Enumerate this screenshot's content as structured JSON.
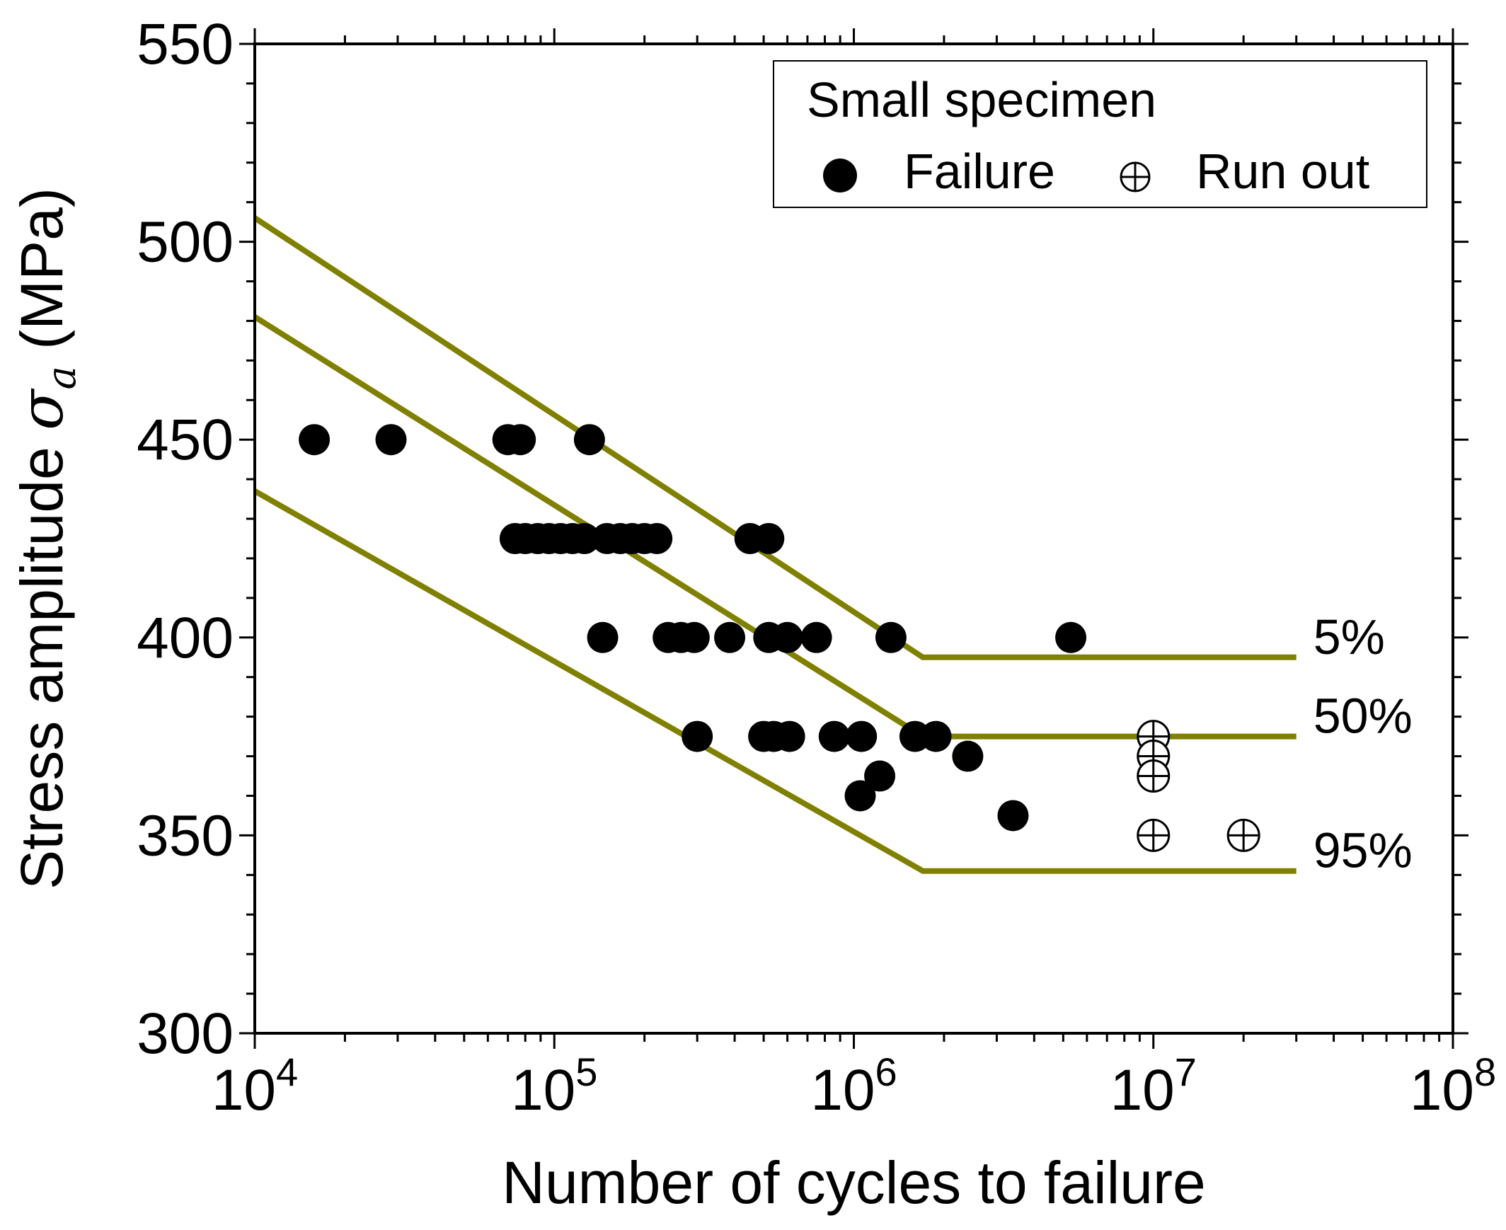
{
  "chart_data": {
    "type": "scatter",
    "title": "",
    "xlabel": "Number of cycles to failure",
    "ylabel_main": "Stress amplitude ",
    "ylabel_symbol": "σ",
    "ylabel_subscript": "a",
    "ylabel_unit": " (MPa)",
    "x_scale": "log",
    "xlim": [
      10000,
      100000000
    ],
    "ylim": [
      300,
      550
    ],
    "x_ticks": [
      {
        "value": 10000,
        "base": "10",
        "exp": "4"
      },
      {
        "value": 100000,
        "base": "10",
        "exp": "5"
      },
      {
        "value": 1000000,
        "base": "10",
        "exp": "6"
      },
      {
        "value": 10000000,
        "base": "10",
        "exp": "7"
      },
      {
        "value": 100000000,
        "base": "10",
        "exp": "8"
      }
    ],
    "y_ticks": [
      {
        "value": 300,
        "label": "300"
      },
      {
        "value": 350,
        "label": "350"
      },
      {
        "value": 400,
        "label": "400"
      },
      {
        "value": 450,
        "label": "450"
      },
      {
        "value": 500,
        "label": "500"
      },
      {
        "value": 550,
        "label": "550"
      }
    ],
    "y_minor_step": 10,
    "legend": {
      "title": "Small specimen",
      "position": "top-right",
      "entries": [
        {
          "label": "Failure",
          "marker": "filled-circle"
        },
        {
          "label": "Run out",
          "marker": "circle-plus"
        }
      ]
    },
    "series": [
      {
        "name": "Failure",
        "marker": "filled-circle",
        "points": [
          [
            15800,
            450
          ],
          [
            28500,
            450
          ],
          [
            70000,
            450
          ],
          [
            77000,
            450
          ],
          [
            131000,
            450
          ],
          [
            74000,
            425
          ],
          [
            80000,
            425
          ],
          [
            88000,
            425
          ],
          [
            96000,
            425
          ],
          [
            105000,
            425
          ],
          [
            115000,
            425
          ],
          [
            126000,
            425
          ],
          [
            150000,
            425
          ],
          [
            166000,
            425
          ],
          [
            182000,
            425
          ],
          [
            200000,
            425
          ],
          [
            220000,
            425
          ],
          [
            450000,
            425
          ],
          [
            520000,
            425
          ],
          [
            145000,
            400
          ],
          [
            240000,
            400
          ],
          [
            265000,
            400
          ],
          [
            293000,
            400
          ],
          [
            385000,
            400
          ],
          [
            520000,
            400
          ],
          [
            600000,
            400
          ],
          [
            750000,
            400
          ],
          [
            1330000,
            400
          ],
          [
            5300000,
            400
          ],
          [
            300000,
            375
          ],
          [
            500000,
            375
          ],
          [
            540000,
            375
          ],
          [
            610000,
            375
          ],
          [
            860000,
            375
          ],
          [
            1060000,
            375
          ],
          [
            1600000,
            375
          ],
          [
            1880000,
            375
          ],
          [
            2400000,
            370
          ],
          [
            1220000,
            365
          ],
          [
            1050000,
            360
          ],
          [
            3400000,
            355
          ]
        ]
      },
      {
        "name": "Run out",
        "marker": "circle-plus",
        "points": [
          [
            10000000,
            375
          ],
          [
            10000000,
            370
          ],
          [
            10000000,
            365
          ],
          [
            10000000,
            350
          ],
          [
            20000000,
            350
          ]
        ]
      }
    ],
    "curves": [
      {
        "label": "5%",
        "points": [
          [
            10000,
            506
          ],
          [
            1700000,
            395
          ],
          [
            30000000,
            395
          ]
        ]
      },
      {
        "label": "50%",
        "points": [
          [
            10000,
            481
          ],
          [
            1700000,
            375
          ],
          [
            30000000,
            375
          ]
        ]
      },
      {
        "label": "95%",
        "points": [
          [
            10000,
            437
          ],
          [
            1700000,
            341
          ],
          [
            30000000,
            341
          ]
        ]
      }
    ],
    "colors": {
      "curve": "#808000",
      "marker": "#000000"
    }
  }
}
